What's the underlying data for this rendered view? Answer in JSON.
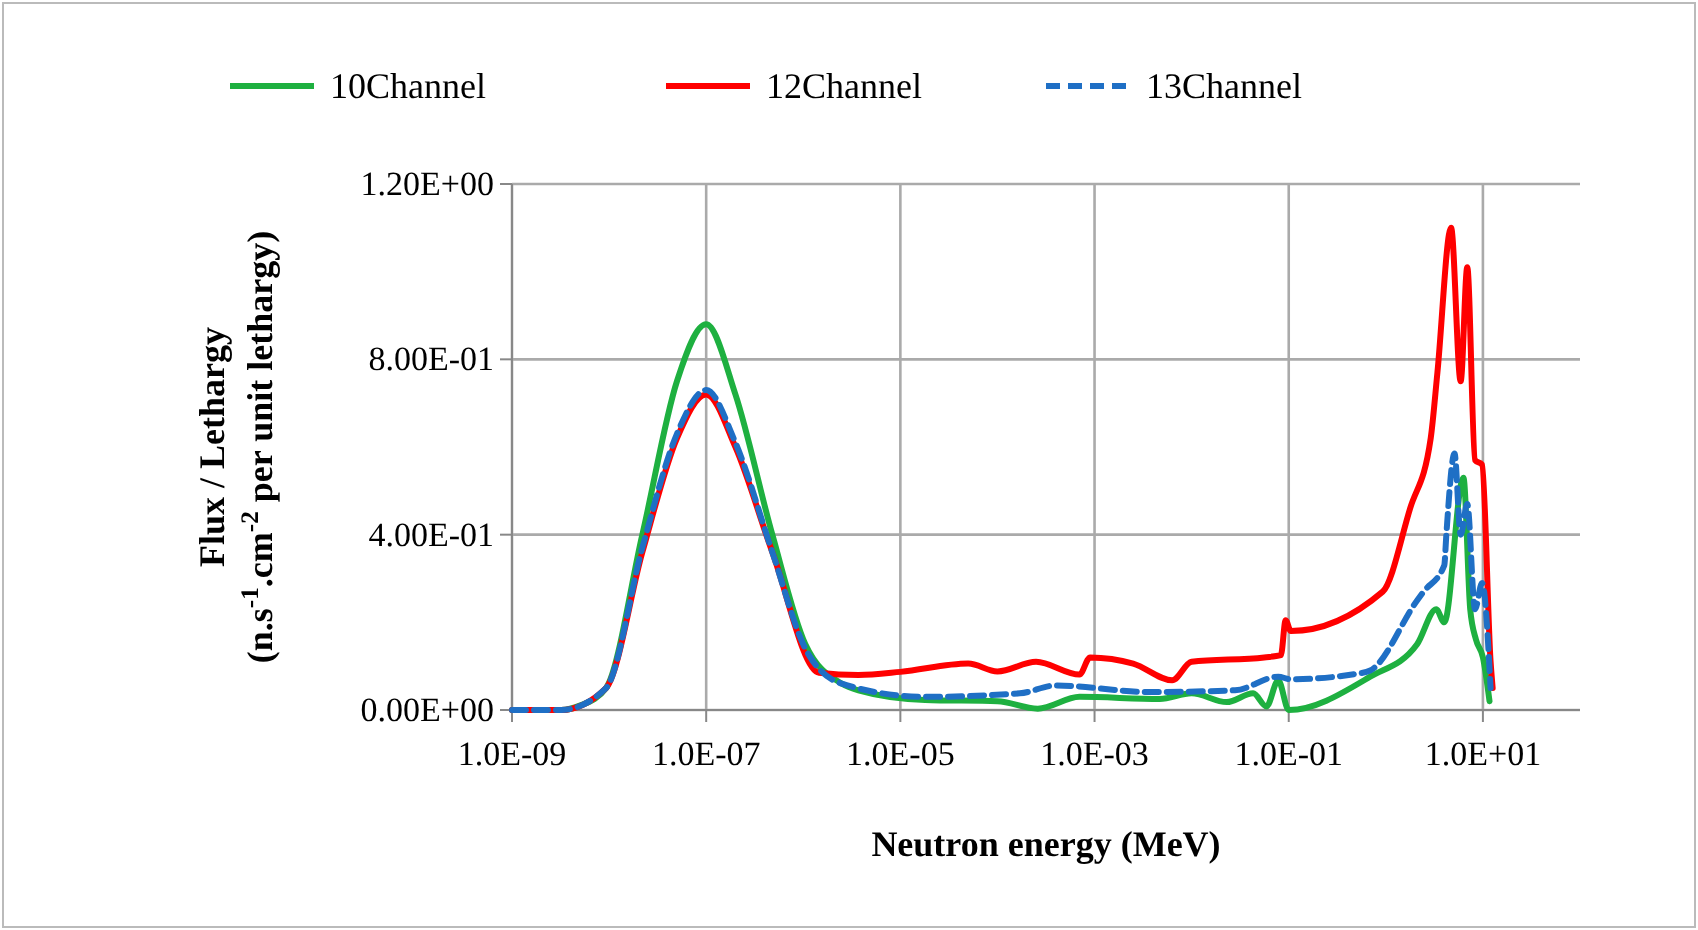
{
  "chart_data": {
    "type": "line",
    "xlabel": "Neutron energy (MeV)",
    "ylabel": "Flux / Lethargy\n(n.s$^{-1}$.cm$^{-2}$ per unit lethargy)",
    "log": "x",
    "grid": true,
    "legend": "top",
    "marker": "none",
    "xlim": [
      1e-09,
      100
    ],
    "ylim": [
      0,
      1.2
    ],
    "xticks": [
      {
        "value": 1e-09,
        "label": "1.0E-09"
      },
      {
        "value": 1e-07,
        "label": "1.0E-07"
      },
      {
        "value": 1e-05,
        "label": "1.0E-05"
      },
      {
        "value": 0.001,
        "label": "1.0E-03"
      },
      {
        "value": 0.1,
        "label": "1.0E-01"
      },
      {
        "value": 10,
        "label": "1.0E+01"
      }
    ],
    "yticks": [
      {
        "value": 0,
        "label": "0.00E+00"
      },
      {
        "value": 0.4,
        "label": "4.00E-01"
      },
      {
        "value": 0.8,
        "label": "8.00E-01"
      },
      {
        "value": 1.2,
        "label": "1.20E+00"
      }
    ],
    "series": [
      {
        "name": "10Channel",
        "color": "#1eb040",
        "line_style": "solid",
        "x": [
          1e-09,
          3.2e-09,
          5e-09,
          9.3e-09,
          2.2e-08,
          5e-08,
          1e-07,
          2e-07,
          4.8e-07,
          1.05e-06,
          2.5e-06,
          3.7e-06,
          1.8e-05,
          0.0001,
          0.00026,
          0.0007,
          0.0047,
          0.01,
          0.023,
          0.043,
          0.059,
          0.078,
          0.1,
          0.69,
          2.1,
          3.3,
          4,
          6.3,
          7.4,
          8.5,
          10,
          11.7
        ],
        "values": [
          0,
          0,
          0.01,
          0.05,
          0.4,
          0.75,
          0.88,
          0.72,
          0.4,
          0.15,
          0.06,
          0.045,
          0.023,
          0.02,
          0.003,
          0.03,
          0.025,
          0.038,
          0.018,
          0.038,
          0.008,
          0.068,
          0,
          0.076,
          0.15,
          0.23,
          0.2,
          0.53,
          0.23,
          0.16,
          0.12,
          0.02
        ]
      },
      {
        "name": "12Channel",
        "color": "#ff0000",
        "line_style": "solid",
        "x": [
          1e-09,
          3.2e-09,
          9.3e-09,
          2.2e-08,
          5e-08,
          1e-07,
          2e-07,
          4.8e-07,
          1.45e-06,
          3.7e-06,
          1e-05,
          5e-05,
          0.0001,
          0.00025,
          0.0007,
          0.0009,
          0.0025,
          0.0063,
          0.01,
          0.056,
          0.083,
          0.093,
          0.105,
          0.93,
          1.78,
          2.9,
          3.4,
          4.7,
          5.9,
          6.9,
          8.3,
          9.8,
          12,
          12.6
        ],
        "values": [
          0,
          0,
          0.05,
          0.36,
          0.62,
          0.72,
          0.6,
          0.36,
          0.085,
          0.08,
          0.087,
          0.106,
          0.088,
          0.11,
          0.081,
          0.12,
          0.106,
          0.068,
          0.11,
          0.12,
          0.125,
          0.205,
          0.18,
          0.27,
          0.46,
          0.62,
          0.77,
          1.1,
          0.75,
          1.01,
          0.57,
          0.56,
          0.11,
          0.05
        ]
      },
      {
        "name": "13Channel",
        "color": "#1f6fc5",
        "line_style": "dashed",
        "x": [
          1e-09,
          3.2e-09,
          9.3e-09,
          2.2e-08,
          5e-08,
          1e-07,
          2e-07,
          4.8e-07,
          1.05e-06,
          2.5e-06,
          1.8e-05,
          0.00017,
          0.0004,
          0.0038,
          0.028,
          0.078,
          0.105,
          0.51,
          0.69,
          2.1,
          2.45,
          4,
          4.2,
          5.1,
          5.9,
          6.9,
          8.3,
          9.8,
          12
        ],
        "values": [
          0,
          0,
          0.05,
          0.37,
          0.63,
          0.73,
          0.61,
          0.36,
          0.14,
          0.06,
          0.03,
          0.038,
          0.056,
          0.041,
          0.045,
          0.076,
          0.07,
          0.083,
          0.09,
          0.25,
          0.27,
          0.33,
          0.4,
          0.585,
          0.4,
          0.47,
          0.23,
          0.29,
          0.05
        ]
      }
    ]
  }
}
